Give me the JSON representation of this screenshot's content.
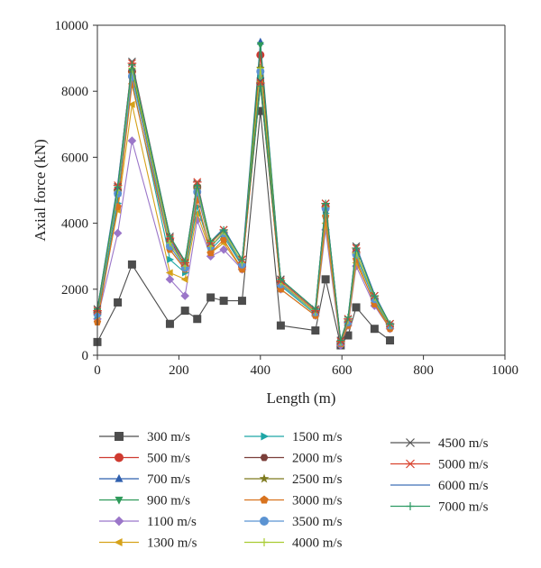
{
  "chart_data": {
    "type": "line",
    "xlabel": "Length (m)",
    "ylabel": "Axial force (kN)",
    "xlim": [
      0,
      1000
    ],
    "ylim": [
      0,
      10000
    ],
    "xticks": [
      0,
      200,
      400,
      600,
      800,
      1000
    ],
    "yticks": [
      0,
      2000,
      4000,
      6000,
      8000,
      10000
    ],
    "xtick_labels": [
      "0",
      "200",
      "400",
      "600",
      "800",
      "1000"
    ],
    "ytick_labels": [
      "0",
      "2000",
      "4000",
      "6000",
      "8000",
      "10000"
    ],
    "grid": false,
    "legend_position": "bottom",
    "x": [
      0,
      50,
      85,
      178,
      215,
      245,
      278,
      310,
      355,
      400,
      450,
      535,
      560,
      597,
      615,
      635,
      680,
      718
    ],
    "series": [
      {
        "name": "300 m/s",
        "color": "#4d4d4d",
        "marker": "square",
        "values": [
          400,
          1600,
          2750,
          950,
          1350,
          1100,
          1750,
          1650,
          1650,
          7400,
          900,
          750,
          2300,
          300,
          600,
          1450,
          800,
          450
        ]
      },
      {
        "name": "500 m/s",
        "color": "#cf3a30",
        "marker": "circle",
        "values": [
          1300,
          5000,
          8600,
          3500,
          2700,
          5100,
          3300,
          3700,
          2700,
          9100,
          2200,
          1300,
          4500,
          400,
          1000,
          3100,
          1700,
          900
        ]
      },
      {
        "name": "700 m/s",
        "color": "#2f5fae",
        "marker": "triangle-up",
        "values": [
          1300,
          4900,
          8700,
          3500,
          2700,
          5100,
          3300,
          3700,
          2800,
          9500,
          2200,
          1300,
          4500,
          400,
          1000,
          3100,
          1700,
          900
        ]
      },
      {
        "name": "900 m/s",
        "color": "#2e9a5a",
        "marker": "triangle-down",
        "values": [
          1300,
          4800,
          8600,
          3400,
          2700,
          5000,
          3300,
          3700,
          2700,
          9400,
          2200,
          1300,
          4500,
          400,
          1000,
          3100,
          1700,
          900
        ]
      },
      {
        "name": "1100 m/s",
        "color": "#9b76c9",
        "marker": "diamond",
        "values": [
          1100,
          3700,
          6500,
          2300,
          1800,
          4100,
          3000,
          3200,
          2600,
          8200,
          2000,
          1200,
          3800,
          300,
          900,
          2700,
          1500,
          800
        ]
      },
      {
        "name": "1300 m/s",
        "color": "#d6a21a",
        "marker": "triangle-left",
        "values": [
          1200,
          4400,
          7600,
          2500,
          2300,
          4300,
          3100,
          3400,
          2600,
          8300,
          2000,
          1200,
          4000,
          350,
          950,
          2800,
          1600,
          850
        ]
      },
      {
        "name": "1500 m/s",
        "color": "#1ea6a6",
        "marker": "triangle-right",
        "values": [
          1200,
          4600,
          8300,
          2900,
          2500,
          4500,
          3200,
          3600,
          2700,
          8400,
          2100,
          1250,
          4300,
          380,
          1000,
          3000,
          1650,
          880
        ]
      },
      {
        "name": "2000 m/s",
        "color": "#7b3f3a",
        "marker": "hexagon",
        "values": [
          1250,
          4900,
          8500,
          3200,
          2600,
          4900,
          3300,
          3700,
          2750,
          8600,
          2150,
          1300,
          4400,
          400,
          1000,
          3100,
          1700,
          900
        ]
      },
      {
        "name": "2500 m/s",
        "color": "#7d7a1e",
        "marker": "star",
        "values": [
          1250,
          4950,
          8550,
          3300,
          2650,
          5000,
          3300,
          3700,
          2750,
          8700,
          2150,
          1300,
          4450,
          400,
          1000,
          3100,
          1700,
          900
        ]
      },
      {
        "name": "3000 m/s",
        "color": "#d8731f",
        "marker": "pentagon",
        "values": [
          1000,
          4500,
          8200,
          3200,
          2600,
          4700,
          3100,
          3500,
          2600,
          8200,
          2000,
          1200,
          4200,
          350,
          900,
          2900,
          1550,
          800
        ]
      },
      {
        "name": "3500 m/s",
        "color": "#5b93d2",
        "marker": "circle",
        "values": [
          1250,
          4900,
          8450,
          3300,
          2650,
          4950,
          3300,
          3700,
          2750,
          8600,
          2150,
          1300,
          4450,
          400,
          1000,
          3050,
          1700,
          900
        ]
      },
      {
        "name": "4000 m/s",
        "color": "#a9cc33",
        "marker": "plus",
        "values": [
          1300,
          5000,
          8700,
          3400,
          2700,
          5100,
          3300,
          3750,
          2800,
          8700,
          2200,
          1300,
          4500,
          400,
          1050,
          3100,
          1750,
          900
        ]
      },
      {
        "name": "4500 m/s",
        "color": "#555555",
        "marker": "x",
        "values": [
          1400,
          5100,
          8900,
          3600,
          2800,
          5200,
          3400,
          3800,
          2900,
          8300,
          2300,
          1400,
          4600,
          450,
          1100,
          3300,
          1800,
          950
        ]
      },
      {
        "name": "5000 m/s",
        "color": "#d9432f",
        "marker": "asterisk",
        "values": [
          1350,
          5150,
          8850,
          3550,
          2800,
          5250,
          3400,
          3800,
          2900,
          8250,
          2250,
          1350,
          4600,
          420,
          1100,
          3250,
          1800,
          950
        ]
      },
      {
        "name": "6000 m/s",
        "color": "#3f6fb8",
        "marker": "none",
        "values": [
          1400,
          5200,
          8800,
          3600,
          2850,
          5200,
          3450,
          3850,
          2900,
          8200,
          2300,
          1400,
          4650,
          450,
          1150,
          3300,
          1850,
          950
        ]
      },
      {
        "name": "7000 m/s",
        "color": "#2d9a63",
        "marker": "plus",
        "values": [
          1400,
          5100,
          8800,
          3600,
          2850,
          5150,
          3450,
          3800,
          2900,
          8150,
          2300,
          1400,
          4600,
          450,
          1150,
          3250,
          1800,
          950
        ]
      }
    ]
  }
}
